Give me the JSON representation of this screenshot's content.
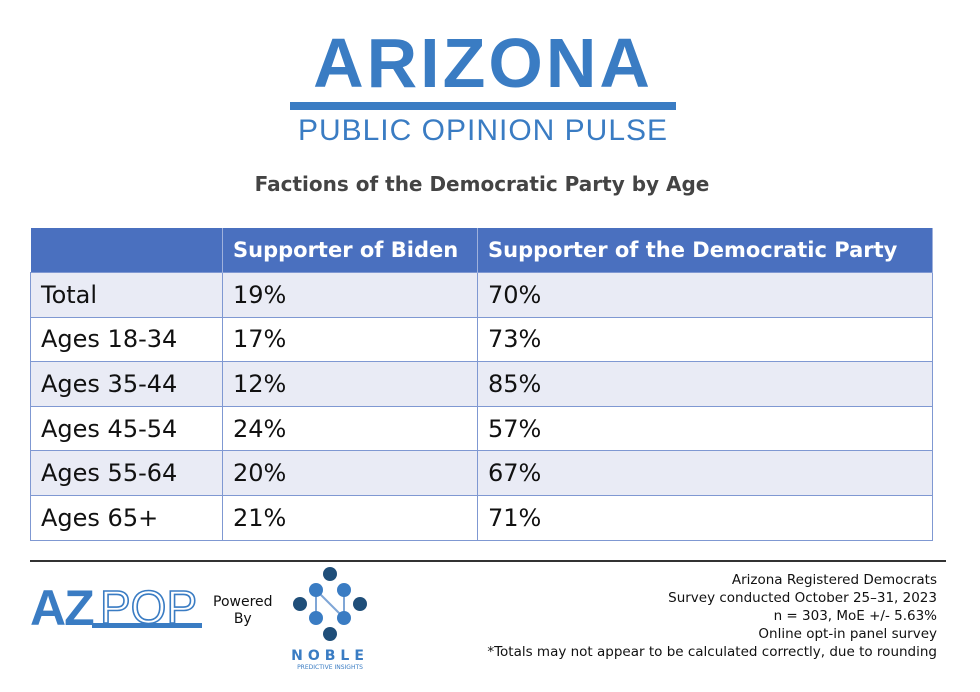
{
  "logo": {
    "main": "ARIZONA",
    "sub": "PUBLIC OPINION PULSE"
  },
  "title": "Factions of the Democratic Party by Age",
  "table": {
    "headers": [
      "",
      "Supporter of Biden",
      "Supporter of the Democratic Party"
    ],
    "rows": [
      [
        "Total",
        "19%",
        "70%"
      ],
      [
        "Ages 18-34",
        "17%",
        "73%"
      ],
      [
        "Ages 35-44",
        "12%",
        "85%"
      ],
      [
        "Ages 45-54",
        "24%",
        "57%"
      ],
      [
        "Ages 55-64",
        "20%",
        "67%"
      ],
      [
        "Ages 65+",
        "21%",
        "71%"
      ]
    ]
  },
  "footer": {
    "azpop_logo": "AZPOP",
    "powered_by": [
      "Powered",
      "By"
    ],
    "noble": {
      "name": "NOBLE",
      "sub": "PREDICTIVE INSIGHTS"
    },
    "notes": [
      "Arizona Registered Democrats",
      "Survey conducted October 25–31, 2023",
      "n = 303, MoE +/- 5.63%",
      "Online opt-in panel survey",
      "*Totals may not appear to be calculated correctly, due to rounding"
    ]
  },
  "colors": {
    "brand": "#3a7cc3",
    "header": "#4a70bf",
    "shade": "#e9ebf5"
  }
}
